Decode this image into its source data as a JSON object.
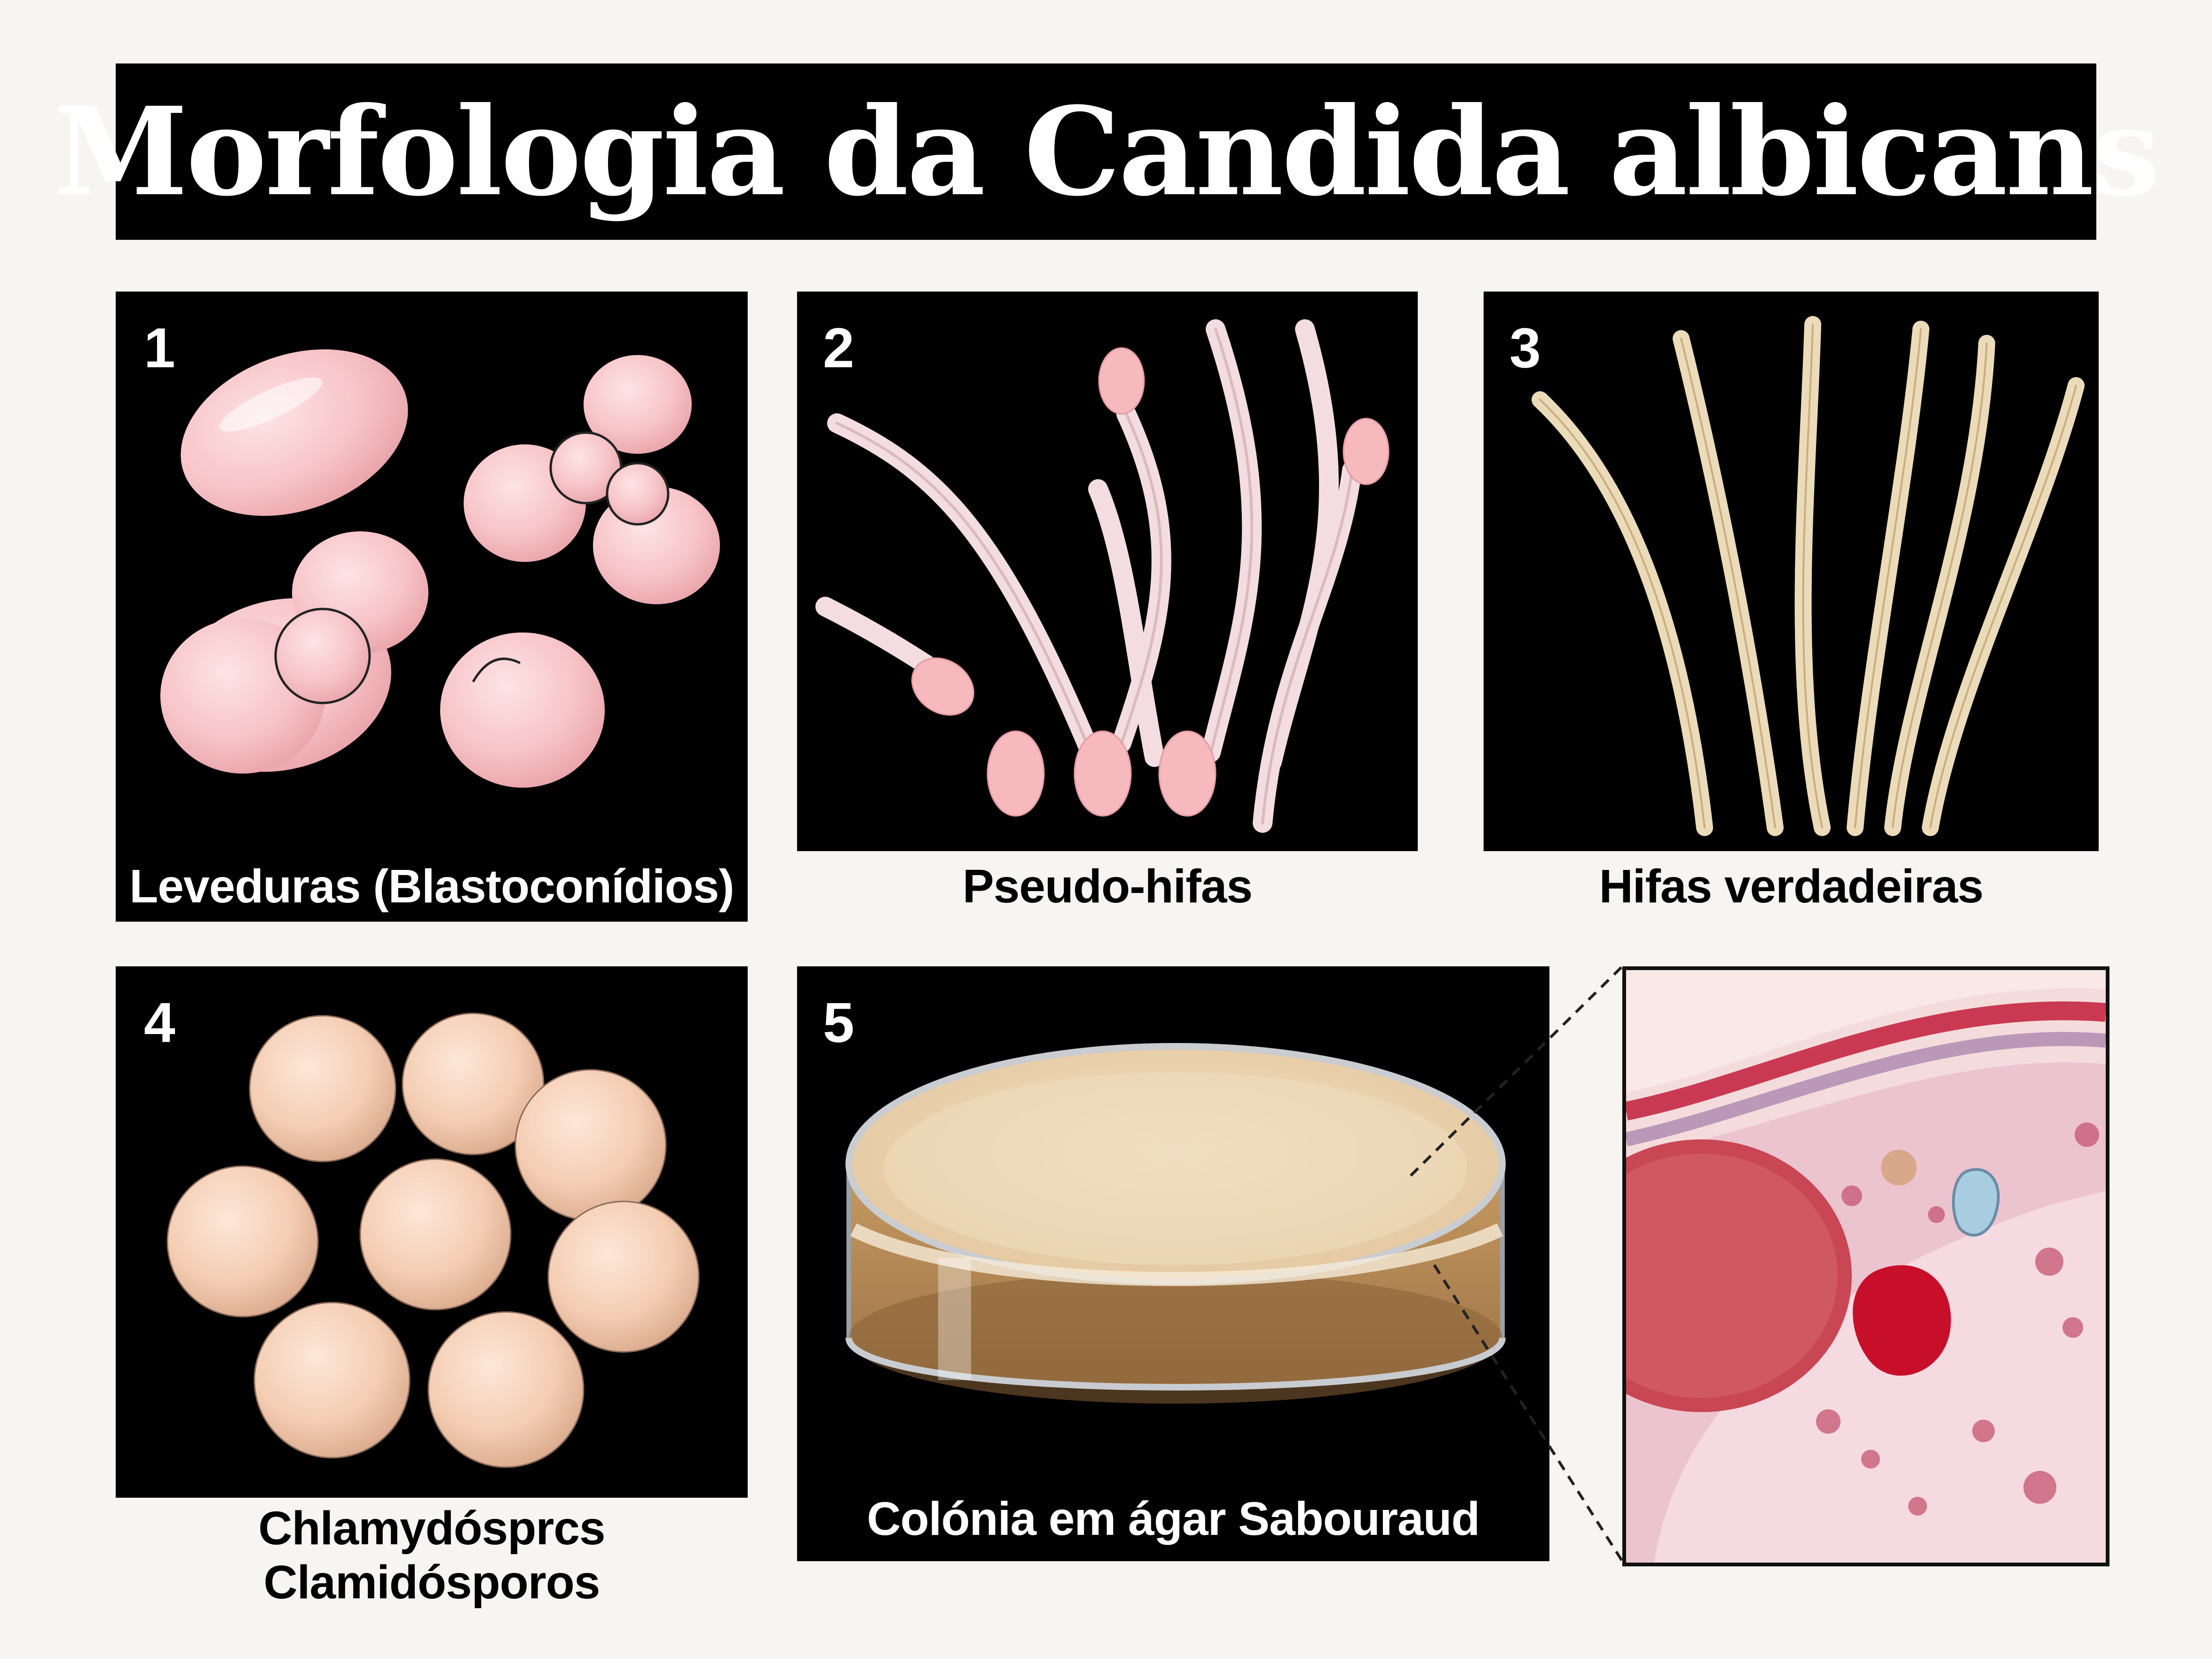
{
  "title": "Morfologia da Candida albicans",
  "panels": [
    {
      "number": "1",
      "label": "Leveduras (Blastoconídios)"
    },
    {
      "number": "2",
      "label": "Pseudo-hifas"
    },
    {
      "number": "3",
      "label": "Hifas verdadeiras"
    },
    {
      "number": "4",
      "label_line1": "Chlamydósprcs",
      "label_line2": "Clamidósporos"
    },
    {
      "number": "5",
      "label": "Colónia em ágar Sabouraud"
    }
  ],
  "colors": {
    "panel_bg": "#000000",
    "yeast_pink": "#f7c9cc",
    "hyphae_cream": "#ead8b4",
    "chlamydospore_peach": "#f3cdb4",
    "agar_tan": "#b8895a",
    "tissue_red": "#c0304a"
  }
}
